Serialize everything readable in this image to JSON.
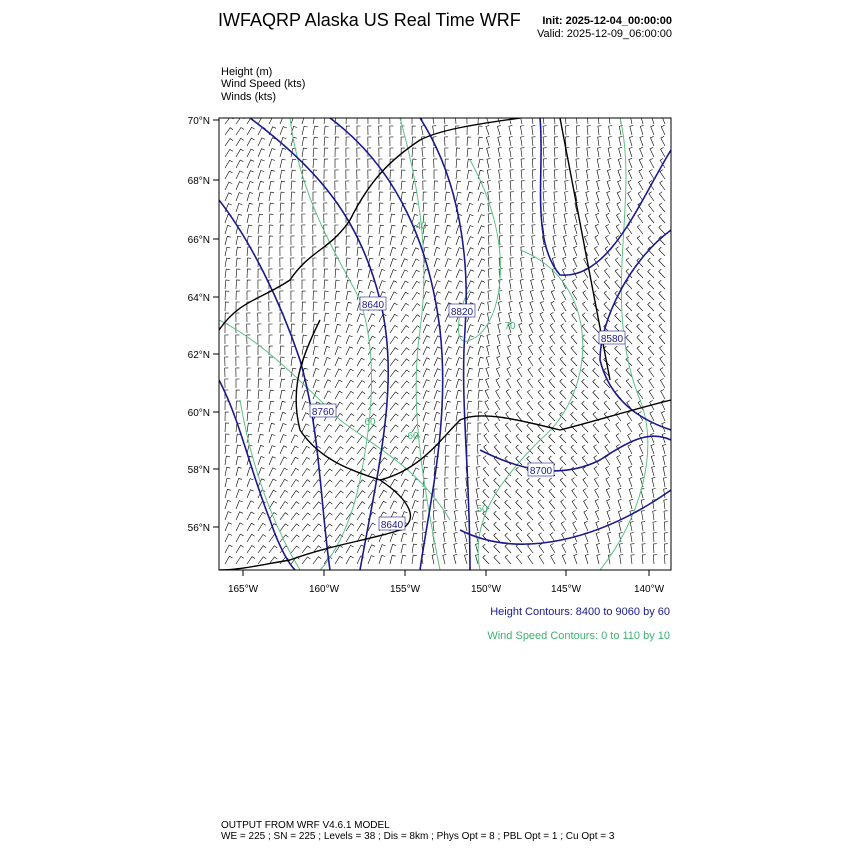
{
  "header": {
    "title": "IWFAQRP Alaska US Real Time WRF",
    "init": "Init: 2025-12-04_00:00:00",
    "valid": "Valid: 2025-12-09_06:00:00"
  },
  "legend": {
    "fields": [
      "Height   (m)",
      "Wind Speed   (kts)",
      "Winds   (kts)"
    ]
  },
  "map": {
    "lat_labels": [
      "70°N",
      "68°N",
      "66°N",
      "64°N",
      "62°N",
      "60°N",
      "58°N",
      "56°N"
    ],
    "lon_labels": [
      "165°W",
      "160°W",
      "155°W",
      "150°W",
      "145°W",
      "140°W"
    ],
    "height_contour_labels": [
      "8640",
      "8820",
      "8580",
      "8760",
      "8700",
      "8640"
    ],
    "wind_speed_contour_labels": [
      "40",
      "70",
      "60",
      "60",
      "50"
    ]
  },
  "contour_info": {
    "height": "Height Contours: 8400 to 9060 by 60",
    "wind_speed": "Wind Speed Contours: 0 to 110 by 10"
  },
  "footer": {
    "model": "OUTPUT FROM WRF V4.6.1 MODEL",
    "settings": "WE = 225 ; SN = 225 ; Levels = 38 ; Dis = 8km ; Phys Opt = 8 ; PBL Opt = 1 ; Cu Opt = 3"
  }
}
